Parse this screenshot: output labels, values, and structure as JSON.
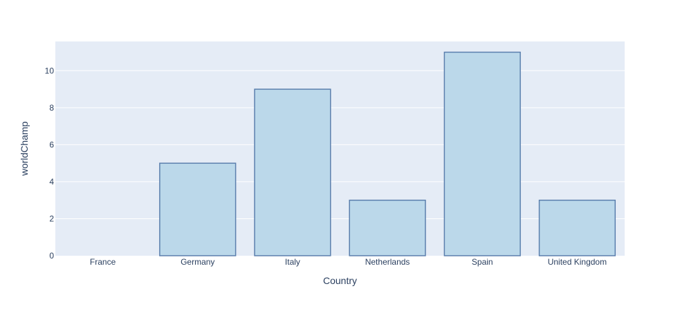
{
  "chart_data": {
    "type": "bar",
    "title": "",
    "xlabel": "Country",
    "ylabel": "worldChamp",
    "categories": [
      "France",
      "Germany",
      "Italy",
      "Netherlands",
      "Spain",
      "United Kingdom"
    ],
    "values": [
      0,
      5,
      9,
      3,
      11,
      3
    ],
    "ylim": [
      0,
      11.58
    ],
    "yticks": [
      0,
      2,
      4,
      6,
      8,
      10
    ],
    "grid": true,
    "colors": {
      "plot_background": "#e5ecf6",
      "bar_fill": "#bbd8ea",
      "bar_outline": "#5b7fad",
      "grid": "#ffffff",
      "text": "#2a3f5f"
    }
  }
}
